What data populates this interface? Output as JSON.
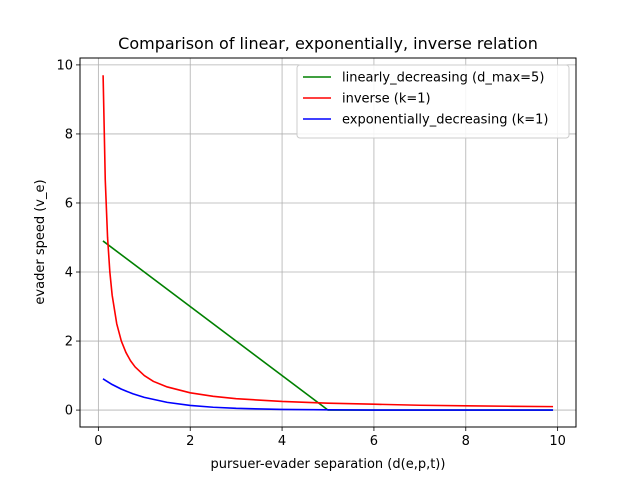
{
  "chart_data": {
    "type": "line",
    "title": "Comparison of linear, exponentially, inverse relation",
    "xlabel": "pursuer-evader separation (d(e,p,t))",
    "ylabel": "evader speed (v_e)",
    "xlim": [
      -0.4,
      10.4
    ],
    "ylim": [
      -0.49,
      10.2
    ],
    "xticks": [
      0,
      2,
      4,
      6,
      8,
      10
    ],
    "yticks": [
      0,
      2,
      4,
      6,
      8,
      10
    ],
    "grid": true,
    "legend_position": "top-right",
    "series": [
      {
        "name": "linearly_decreasing (d_max=5)",
        "color": "#008000",
        "x": [
          0.1,
          4.9,
          5.0,
          9.9
        ],
        "y": [
          4.9,
          0.1,
          0.0,
          0.0
        ]
      },
      {
        "name": "inverse (k=1)",
        "color": "#ff0000",
        "x": [
          0.103,
          0.15,
          0.2,
          0.25,
          0.3,
          0.4,
          0.5,
          0.6,
          0.7,
          0.8,
          1.0,
          1.2,
          1.5,
          2.0,
          2.5,
          3.0,
          4.0,
          5.0,
          6.0,
          7.0,
          8.0,
          9.0,
          9.9
        ],
        "y": [
          9.7,
          6.67,
          5.0,
          4.0,
          3.33,
          2.5,
          2.0,
          1.67,
          1.43,
          1.25,
          1.0,
          0.83,
          0.67,
          0.5,
          0.4,
          0.33,
          0.25,
          0.2,
          0.17,
          0.14,
          0.125,
          0.11,
          0.1
        ]
      },
      {
        "name": "exponentially_decreasing (k=1)",
        "color": "#0000ff",
        "x": [
          0.1,
          0.3,
          0.5,
          0.75,
          1.0,
          1.5,
          2.0,
          2.5,
          3.0,
          4.0,
          5.0,
          6.0,
          7.0,
          8.0,
          9.0,
          9.9
        ],
        "y": [
          0.905,
          0.741,
          0.607,
          0.472,
          0.368,
          0.223,
          0.135,
          0.082,
          0.05,
          0.018,
          0.007,
          0.002,
          0.001,
          0.0,
          0.0,
          0.0
        ]
      }
    ]
  }
}
